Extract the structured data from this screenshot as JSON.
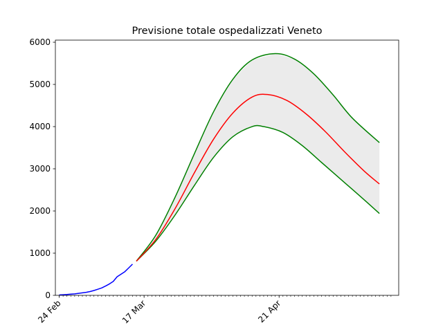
{
  "chart_data": {
    "type": "line",
    "title": "Previsione totale ospedalizzati Veneto",
    "xlabel": "",
    "ylabel": "",
    "x_start": "2020-02-23",
    "x_end": "2020-05-22",
    "ylim": [
      0,
      6050
    ],
    "yticks": [
      0,
      1000,
      2000,
      3000,
      4000,
      5000,
      6000
    ],
    "xticks": [
      {
        "date": "2020-02-24",
        "label": "24 Feb"
      },
      {
        "date": "2020-03-17",
        "label": "17 Mar"
      },
      {
        "date": "2020-04-21",
        "label": "21 Apr"
      }
    ],
    "minor_ticks_from": "2020-02-24",
    "minor_ticks_to": "2020-05-20",
    "grid": false,
    "legend": "none",
    "series": [
      {
        "color": "#0000ff",
        "points": [
          [
            "2020-02-24",
            10
          ],
          [
            "2020-02-25",
            15
          ],
          [
            "2020-02-26",
            20
          ],
          [
            "2020-02-27",
            28
          ],
          [
            "2020-02-28",
            35
          ],
          [
            "2020-02-29",
            48
          ],
          [
            "2020-03-01",
            60
          ],
          [
            "2020-03-02",
            72
          ],
          [
            "2020-03-03",
            90
          ],
          [
            "2020-03-04",
            115
          ],
          [
            "2020-03-05",
            145
          ],
          [
            "2020-03-06",
            175
          ],
          [
            "2020-03-07",
            220
          ],
          [
            "2020-03-08",
            270
          ],
          [
            "2020-03-09",
            330
          ],
          [
            "2020-03-10",
            440
          ],
          [
            "2020-03-11",
            500
          ],
          [
            "2020-03-12",
            560
          ],
          [
            "2020-03-13",
            650
          ],
          [
            "2020-03-14",
            740
          ]
        ]
      },
      {
        "color": "#ff0000",
        "points": [
          [
            "2020-03-15",
            810
          ],
          [
            "2020-03-20",
            1320
          ],
          [
            "2020-03-25",
            2050
          ],
          [
            "2020-03-30",
            2900
          ],
          [
            "2020-04-04",
            3700
          ],
          [
            "2020-04-09",
            4320
          ],
          [
            "2020-04-14",
            4700
          ],
          [
            "2020-04-18",
            4760
          ],
          [
            "2020-04-23",
            4620
          ],
          [
            "2020-04-28",
            4300
          ],
          [
            "2020-05-03",
            3880
          ],
          [
            "2020-05-08",
            3400
          ],
          [
            "2020-05-13",
            2950
          ],
          [
            "2020-05-17",
            2640
          ]
        ]
      },
      {
        "color": "#008000",
        "band": "upper",
        "points": [
          [
            "2020-03-15",
            810
          ],
          [
            "2020-03-20",
            1420
          ],
          [
            "2020-03-25",
            2320
          ],
          [
            "2020-03-30",
            3350
          ],
          [
            "2020-04-04",
            4350
          ],
          [
            "2020-04-09",
            5120
          ],
          [
            "2020-04-14",
            5580
          ],
          [
            "2020-04-20",
            5730
          ],
          [
            "2020-04-25",
            5600
          ],
          [
            "2020-04-30",
            5250
          ],
          [
            "2020-05-05",
            4750
          ],
          [
            "2020-05-10",
            4200
          ],
          [
            "2020-05-17",
            3620
          ]
        ]
      },
      {
        "color": "#008000",
        "band": "lower",
        "points": [
          [
            "2020-03-15",
            810
          ],
          [
            "2020-03-20",
            1280
          ],
          [
            "2020-03-25",
            1900
          ],
          [
            "2020-03-30",
            2600
          ],
          [
            "2020-04-04",
            3270
          ],
          [
            "2020-04-09",
            3760
          ],
          [
            "2020-04-14",
            4000
          ],
          [
            "2020-04-17",
            4000
          ],
          [
            "2020-04-22",
            3860
          ],
          [
            "2020-04-27",
            3550
          ],
          [
            "2020-05-02",
            3150
          ],
          [
            "2020-05-07",
            2750
          ],
          [
            "2020-05-12",
            2350
          ],
          [
            "2020-05-17",
            1940
          ]
        ]
      }
    ],
    "band_fill": "#ebebeb"
  }
}
